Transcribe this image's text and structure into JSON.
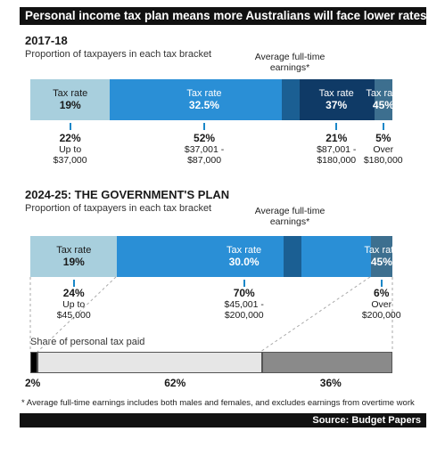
{
  "header": {
    "title": "Personal income tax plan means more Australians will face lower rates of tax"
  },
  "colors": {
    "light": "#a8cfdd",
    "mid": "#2a8fd6",
    "dark": "#1b5f93",
    "navy": "#0f3a66",
    "steel": "#3d6f8f",
    "tick": "#1a87c8",
    "share_black": "#000000",
    "share_light": "#e6e6e6",
    "share_dark": "#8a8a8a"
  },
  "chart_data": [
    {
      "type": "bar",
      "title": "2017-18",
      "subtitle": "Proportion of taxpayers in each tax bracket",
      "average_note": "Average full-time earnings*",
      "segment_label": "Tax rate",
      "brackets": [
        {
          "rate": "19%",
          "share": "22%",
          "range": "Up to $37,000",
          "color": "light",
          "share_value": 22
        },
        {
          "rate": "32.5%",
          "share": "52%",
          "range": "$37,001 - $87,000",
          "color": "mid",
          "share_value": 52
        },
        {
          "rate": "37%",
          "share": "21%",
          "range": "$87,001 - $180,000",
          "color": "navy",
          "share_value": 21
        },
        {
          "rate": "45%",
          "share": "5%",
          "range": "Over $180,000",
          "color": "steel",
          "share_value": 5
        }
      ]
    },
    {
      "type": "bar",
      "title": "2024-25: THE GOVERNMENT'S PLAN",
      "subtitle": "Proportion of taxpayers in each tax bracket",
      "average_note": "Average full-time earnings*",
      "segment_label": "Tax rate",
      "brackets": [
        {
          "rate": "19%",
          "share": "24%",
          "range": "Up to $45,000",
          "color": "light",
          "share_value": 24
        },
        {
          "rate": "30.0%",
          "share": "70%",
          "range": "$45,001 - $200,000",
          "color": "mid",
          "share_value": 70
        },
        {
          "rate": "45%",
          "share": "6%",
          "range": "Over $200,000",
          "color": "steel",
          "share_value": 6
        }
      ]
    },
    {
      "type": "bar",
      "title": "Share of personal tax paid",
      "values": [
        2,
        62,
        36
      ],
      "labels": [
        "2%",
        "62%",
        "36%"
      ],
      "colors": [
        "share_black",
        "share_light",
        "share_dark"
      ]
    }
  ],
  "footnote": "* Average full-time earnings includes both males and females, and excludes earnings from overtime work",
  "source": "Source: Budget Papers"
}
